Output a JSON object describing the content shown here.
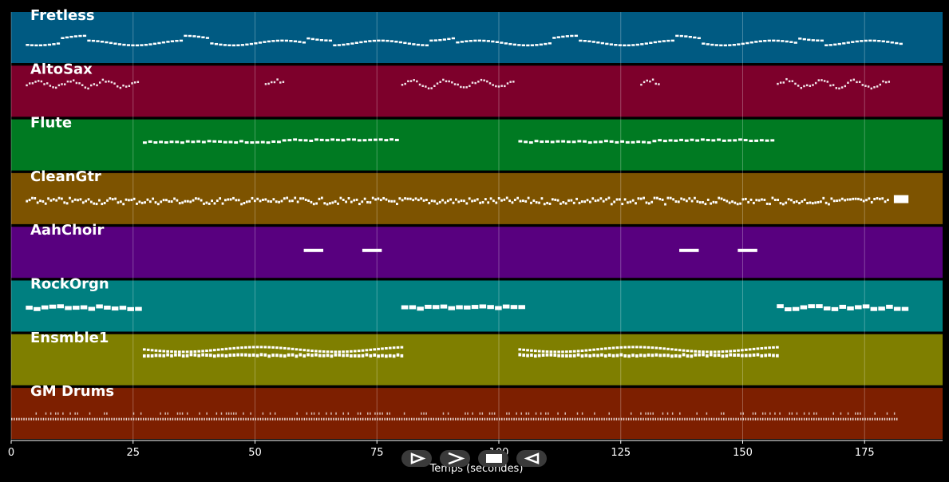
{
  "axis": {
    "ticks": [
      0,
      25,
      50,
      75,
      100,
      125,
      150,
      175
    ],
    "label": "Temps (secondes)",
    "duration": 191
  },
  "tracks": [
    {
      "name": "Fretless",
      "color": "#005a82",
      "pattern": "bass"
    },
    {
      "name": "AltoSax",
      "color": "#7d002b",
      "pattern": "sax"
    },
    {
      "name": "Flute",
      "color": "#007a22",
      "pattern": "flute"
    },
    {
      "name": "CleanGtr",
      "color": "#7d5300",
      "pattern": "guitar"
    },
    {
      "name": "AahChoir",
      "color": "#58007f",
      "pattern": "choir"
    },
    {
      "name": "RockOrgn",
      "color": "#007f80",
      "pattern": "organ"
    },
    {
      "name": "Ensmble1",
      "color": "#7f7f00",
      "pattern": "ensemble"
    },
    {
      "name": "GM Drums",
      "color": "#7d1f00",
      "pattern": "drums"
    }
  ],
  "controls": [
    {
      "name": "rewind-button",
      "icon": "play-outline-icon"
    },
    {
      "name": "forward-button",
      "icon": "forward-icon"
    },
    {
      "name": "stop-button",
      "icon": "stop-icon"
    },
    {
      "name": "back-button",
      "icon": "back-icon"
    }
  ]
}
